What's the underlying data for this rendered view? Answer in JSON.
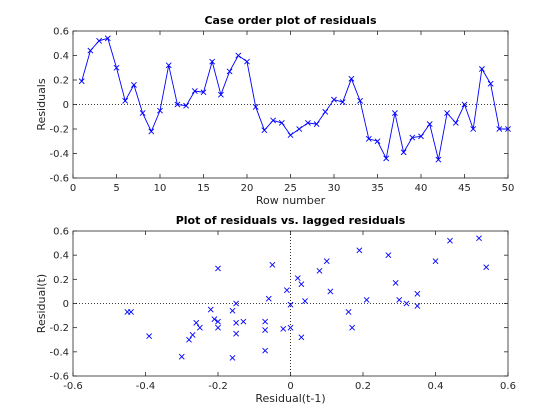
{
  "chart_data": [
    {
      "type": "line",
      "title": "Case order plot of residuals",
      "xlabel": "Row number",
      "ylabel": "Residuals",
      "xlim": [
        0,
        50
      ],
      "ylim": [
        -0.6,
        0.6
      ],
      "xticks": [
        0,
        5,
        10,
        15,
        20,
        25,
        30,
        35,
        40,
        45,
        50
      ],
      "yticks": [
        -0.6,
        -0.4,
        -0.2,
        0,
        0.2,
        0.4,
        0.6
      ],
      "xtick_labels": [
        "0",
        "5",
        "10",
        "15",
        "20",
        "25",
        "30",
        "35",
        "40",
        "45",
        "50"
      ],
      "ytick_labels": [
        "-0.6",
        "-0.4",
        "-0.2",
        "0",
        "0.2",
        "0.4",
        "0.6"
      ],
      "marker": "x",
      "zero_line": "dotted",
      "grid": false,
      "color": "#0000ff",
      "x": [
        1,
        2,
        3,
        4,
        5,
        6,
        7,
        8,
        9,
        10,
        11,
        12,
        13,
        14,
        15,
        16,
        17,
        18,
        19,
        20,
        21,
        22,
        23,
        24,
        25,
        26,
        27,
        28,
        29,
        30,
        31,
        32,
        33,
        34,
        35,
        36,
        37,
        38,
        39,
        40,
        41,
        42,
        43,
        44,
        45,
        46,
        47,
        48,
        49,
        50
      ],
      "y": [
        0.19,
        0.44,
        0.52,
        0.54,
        0.3,
        0.03,
        0.16,
        -0.07,
        -0.22,
        -0.05,
        0.32,
        0.0,
        -0.01,
        0.11,
        0.1,
        0.35,
        0.08,
        0.27,
        0.4,
        0.35,
        -0.02,
        -0.21,
        -0.13,
        -0.15,
        -0.25,
        -0.2,
        -0.15,
        -0.16,
        -0.06,
        0.04,
        0.02,
        0.21,
        0.03,
        -0.28,
        -0.3,
        -0.44,
        -0.07,
        -0.39,
        -0.27,
        -0.26,
        -0.16,
        -0.45,
        -0.07,
        -0.15,
        0.0,
        -0.2,
        0.29,
        0.17,
        -0.2,
        -0.2
      ]
    },
    {
      "type": "scatter",
      "title": "Plot of residuals vs. lagged residuals",
      "xlabel": "Residual(t-1)",
      "ylabel": "Residual(t)",
      "xlim": [
        -0.6,
        0.6
      ],
      "ylim": [
        -0.6,
        0.6
      ],
      "xticks": [
        -0.6,
        -0.4,
        -0.2,
        0,
        0.2,
        0.4,
        0.6
      ],
      "yticks": [
        -0.6,
        -0.4,
        -0.2,
        0,
        0.2,
        0.4,
        0.6
      ],
      "xtick_labels": [
        "-0.6",
        "-0.4",
        "-0.2",
        "0",
        "0.2",
        "0.4",
        "0.6"
      ],
      "ytick_labels": [
        "-0.6",
        "-0.4",
        "-0.2",
        "0",
        "0.2",
        "0.4",
        "0.6"
      ],
      "marker": "x",
      "zero_lines": "dotted",
      "grid": false,
      "color": "#0000ff",
      "points": [
        [
          0.19,
          0.44
        ],
        [
          0.44,
          0.52
        ],
        [
          0.52,
          0.54
        ],
        [
          0.54,
          0.3
        ],
        [
          0.3,
          0.03
        ],
        [
          0.03,
          0.16
        ],
        [
          0.16,
          -0.07
        ],
        [
          -0.07,
          -0.22
        ],
        [
          -0.22,
          -0.05
        ],
        [
          -0.05,
          0.32
        ],
        [
          0.32,
          0.0
        ],
        [
          0.0,
          -0.01
        ],
        [
          -0.01,
          0.11
        ],
        [
          0.11,
          0.1
        ],
        [
          0.1,
          0.35
        ],
        [
          0.35,
          0.08
        ],
        [
          0.08,
          0.27
        ],
        [
          0.27,
          0.4
        ],
        [
          0.4,
          0.35
        ],
        [
          0.35,
          -0.02
        ],
        [
          -0.02,
          -0.21
        ],
        [
          -0.21,
          -0.13
        ],
        [
          -0.13,
          -0.15
        ],
        [
          -0.15,
          -0.25
        ],
        [
          -0.25,
          -0.2
        ],
        [
          -0.2,
          -0.15
        ],
        [
          -0.15,
          -0.16
        ],
        [
          -0.16,
          -0.06
        ],
        [
          -0.06,
          0.04
        ],
        [
          0.04,
          0.02
        ],
        [
          0.02,
          0.21
        ],
        [
          0.21,
          0.03
        ],
        [
          0.03,
          -0.28
        ],
        [
          -0.28,
          -0.3
        ],
        [
          -0.3,
          -0.44
        ],
        [
          -0.44,
          -0.07
        ],
        [
          -0.07,
          -0.39
        ],
        [
          -0.39,
          -0.27
        ],
        [
          -0.27,
          -0.26
        ],
        [
          -0.26,
          -0.16
        ],
        [
          -0.16,
          -0.45
        ],
        [
          -0.45,
          -0.07
        ],
        [
          -0.07,
          -0.15
        ],
        [
          -0.15,
          0.0
        ],
        [
          0.0,
          -0.2
        ],
        [
          -0.2,
          0.29
        ],
        [
          0.29,
          0.17
        ],
        [
          0.17,
          -0.2
        ],
        [
          -0.2,
          -0.2
        ]
      ]
    }
  ]
}
